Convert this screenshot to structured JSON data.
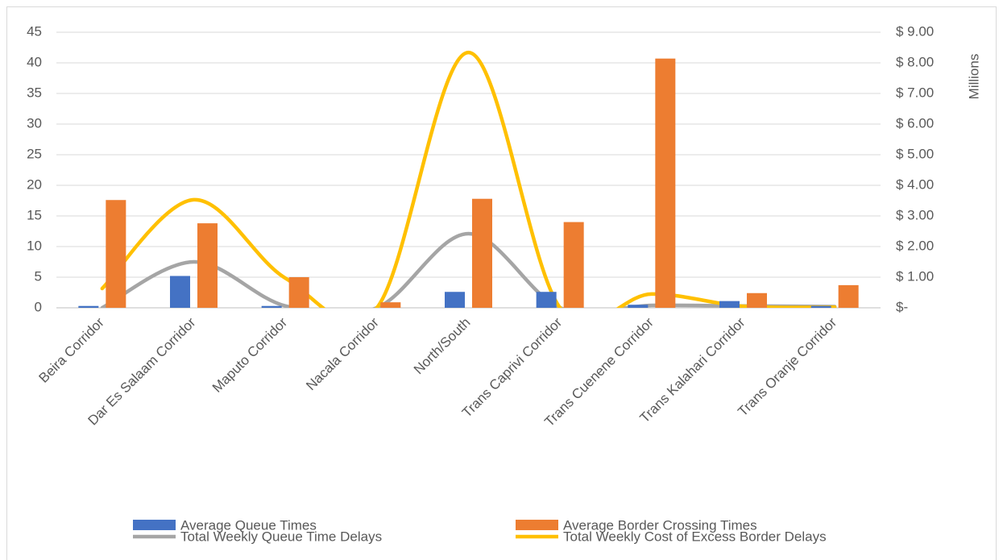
{
  "chart_data": {
    "type": "combo",
    "categories": [
      "Beira Corridor",
      "Dar Es Salaam Corridor",
      "Maputo Corridor",
      "Nacala Corridor",
      "North/South",
      "Trans Caprivi Corridor",
      "Trans Cuenene Corridor",
      "Trans Kalahari Corridor",
      "Trans Oranje Corridor"
    ],
    "series": [
      {
        "name": "Average Queue Times",
        "type": "bar",
        "axis": "y",
        "color": "#4472c4",
        "values": [
          0.3,
          5.2,
          0.3,
          0,
          2.6,
          2.6,
          0.5,
          1.1,
          0.3
        ]
      },
      {
        "name": "Average Border Crossing Times",
        "type": "bar",
        "axis": "y",
        "color": "#ed7d31",
        "values": [
          17.6,
          13.8,
          5,
          0.9,
          17.8,
          14,
          40.7,
          2.4,
          3.7
        ]
      },
      {
        "name": "Total Weekly Queue Time Delays",
        "type": "line",
        "axis": "y",
        "color": "#a5a5a5",
        "smooth": true,
        "values": [
          0,
          7.5,
          0.3,
          0,
          12.1,
          0,
          0.4,
          0.3,
          0.2
        ]
      },
      {
        "name": "Total Weekly Cost of Excess Border Delays",
        "type": "line",
        "axis": "y2",
        "color": "#ffc000",
        "smooth": true,
        "values": [
          0.63,
          3.53,
          0.97,
          0,
          8.34,
          0,
          0.45,
          0.05,
          0.02
        ]
      }
    ],
    "ylim": [
      0,
      45
    ],
    "yticks": [
      0,
      5,
      10,
      15,
      20,
      25,
      30,
      35,
      40,
      45
    ],
    "y2lim": [
      0,
      9
    ],
    "y2ticks": [
      {
        "value": 0,
        "label": "$-"
      },
      {
        "value": 1,
        "label": "$ 1.00"
      },
      {
        "value": 2,
        "label": "$ 2.00"
      },
      {
        "value": 3,
        "label": "$ 3.00"
      },
      {
        "value": 4,
        "label": "$ 4.00"
      },
      {
        "value": 5,
        "label": "$ 5.00"
      },
      {
        "value": 6,
        "label": "$ 6.00"
      },
      {
        "value": 7,
        "label": "$ 7.00"
      },
      {
        "value": 8,
        "label": "$ 8.00"
      },
      {
        "value": 9,
        "label": "$ 9.00"
      }
    ],
    "y2label": "Millions",
    "grid": true,
    "legend": "bottom"
  }
}
